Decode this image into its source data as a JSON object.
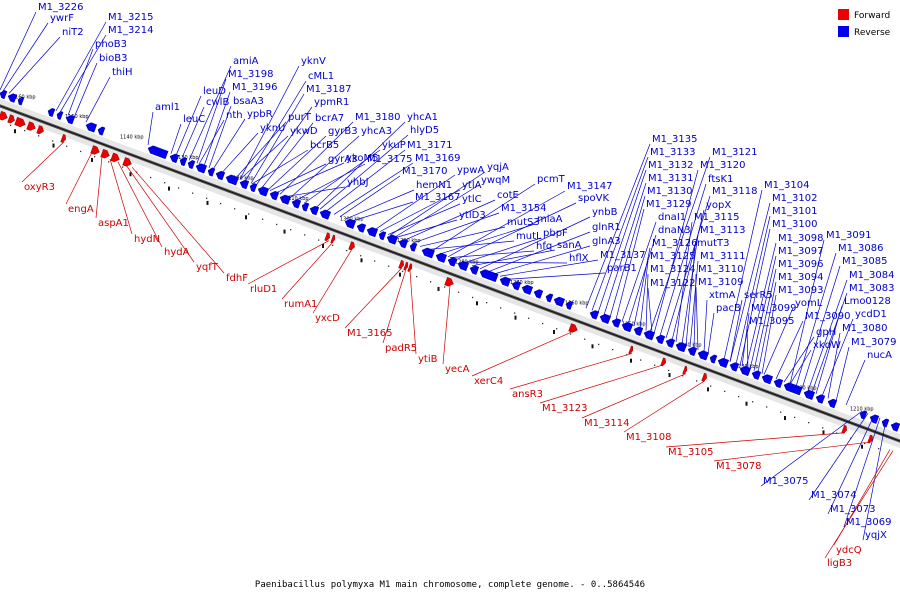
{
  "caption": "Paenibacillus polymyxa M1 main chromosome, complete genome. - 0..5864546",
  "legend": {
    "forward": {
      "label": "Forward",
      "color": "#ee0000"
    },
    "reverse": {
      "label": "Reverse",
      "color": "#0000ee"
    }
  },
  "colors": {
    "forward": "#cc0000",
    "reverse": "#0000cc",
    "forward_gene": "#ee0000",
    "reverse_gene": "#0000ee"
  },
  "ticks": [
    "1160 kbp",
    "1150 kbp",
    "1140 kbp",
    "1130 kbp",
    "1120 kbp",
    "1110 kbp",
    "1300 kbp",
    "1290 kbp",
    "1280 kbp",
    "1270 kbp",
    "1260 kbp",
    "1250 kbp",
    "1240 kbp",
    "1230 kbp",
    "1220 kbp",
    "1210 kbp"
  ],
  "reverse_labels": [
    "M1_3226",
    "ywrF",
    "M1_3215",
    "M1_3214",
    "niT2",
    "phoB3",
    "bioB3",
    "thiH",
    "amiA",
    "M1_3198",
    "leuD",
    "M1_3196",
    "cwlB",
    "bsaA3",
    "nth",
    "ypbR",
    "yknV",
    "cML1",
    "M1_3187",
    "ypmR1",
    "aml1",
    "leuC",
    "yknU",
    "purT",
    "bcrA7",
    "ykwD",
    "gyrB3",
    "bcrB5",
    "M1_3180",
    "yhcA1",
    "ykoM5",
    "yhcA3",
    "ykuP",
    "hlyD5",
    "M1_3175",
    "M1_3171",
    "gyrA3",
    "yhbJ",
    "M1_3169",
    "M1_3170",
    "hemN1",
    "M1_3167",
    "ypwA",
    "yqjA",
    "ytlA",
    "ywqM",
    "ytlC",
    "cotE",
    "ytlD3",
    "M1_3154",
    "mutS3",
    "pcmT",
    "miaA",
    "M1_3147",
    "spoVK",
    "mutL",
    "pbpF",
    "hfq",
    "sanA",
    "ynbB",
    "glnR1",
    "hflX",
    "M1_3137",
    "glnA3",
    "parB1",
    "M1_3135",
    "M1_3133",
    "M1_3132",
    "M1_3131",
    "M1_3130",
    "M1_3129",
    "dnaI1",
    "M1_3121",
    "M1_3120",
    "ftsK1",
    "M1_3118",
    "yopX",
    "dnaN3",
    "M1_3126",
    "M1_3125",
    "M1_3124",
    "M1_3122",
    "M1_3115",
    "M1_3113",
    "mutT3",
    "M1_3111",
    "M1_3110",
    "M1_3109",
    "xtmA",
    "pacB",
    "M1_3104",
    "M1_3102",
    "M1_3101",
    "M1_3100",
    "M1_3098",
    "M1_3097",
    "M1_3096",
    "M1_3094",
    "M1_3093",
    "serR5",
    "M1_3099",
    "M1_3095",
    "yomL",
    "M1_3091",
    "M1_3086",
    "M1_3085",
    "M1_3084",
    "M1_3083",
    "Lmo0128",
    "M1_3090",
    "ycdD1",
    "gpH",
    "M1_3080",
    "xkdW",
    "M1_3079",
    "nucA",
    "M1_3075",
    "M1_3074",
    "M1_3073",
    "M1_3069",
    "yqjX"
  ],
  "forward_labels": [
    "oxyR3",
    "engA",
    "aspA1",
    "hydN",
    "hydA",
    "yqfT",
    "fdhF",
    "rluD1",
    "rumA1",
    "yxcD",
    "M1_3165",
    "padR5",
    "ytiB",
    "yecA",
    "xerC4",
    "ansR3",
    "M1_3123",
    "M1_3114",
    "M1_3108",
    "M1_3105",
    "M1_3078",
    "ydcQ",
    "ligB3"
  ]
}
